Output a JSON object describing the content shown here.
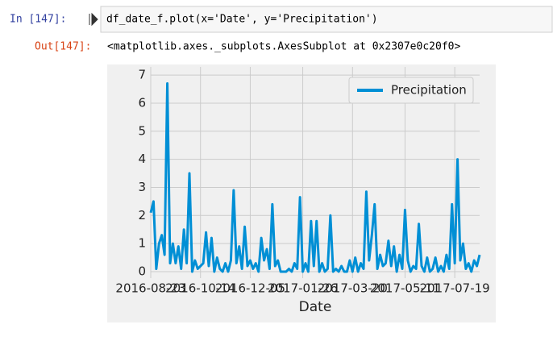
{
  "input": {
    "prompt": "In [147]:",
    "code": "df_date_f.plot(x='Date', y='Precipitation')"
  },
  "output": {
    "prompt": "Out[147]:",
    "text": "<matplotlib.axes._subplots.AxesSubplot at 0x2307e0c20f0>"
  },
  "chart_data": {
    "type": "line",
    "xlabel": "Date",
    "series": [
      {
        "name": "Precipitation",
        "color": "#008fd5",
        "values": [
          2.1,
          2.5,
          0.1,
          1.0,
          1.3,
          0.6,
          6.7,
          0.3,
          1.0,
          0.3,
          0.9,
          0.1,
          1.5,
          0.3,
          3.5,
          0.0,
          0.4,
          0.1,
          0.2,
          0.3,
          1.4,
          0.2,
          1.2,
          0.0,
          0.5,
          0.1,
          0.0,
          0.3,
          0.0,
          0.4,
          2.9,
          0.3,
          0.9,
          0.1,
          1.6,
          0.2,
          0.4,
          0.1,
          0.3,
          0.0,
          1.2,
          0.4,
          0.8,
          0.1,
          2.4,
          0.2,
          0.4,
          0.0,
          0.0,
          0.0,
          0.1,
          0.0,
          0.3,
          0.1,
          2.65,
          0.0,
          0.3,
          0.0,
          1.8,
          0.2,
          1.8,
          0.0,
          0.3,
          0.0,
          0.1,
          2.0,
          0.0,
          0.1,
          0.0,
          0.2,
          0.0,
          0.0,
          0.4,
          0.0,
          0.5,
          0.0,
          0.3,
          0.1,
          2.85,
          0.4,
          1.3,
          2.4,
          0.1,
          0.6,
          0.2,
          0.3,
          1.1,
          0.2,
          0.9,
          0.0,
          0.6,
          0.1,
          2.2,
          0.4,
          0.0,
          0.2,
          0.1,
          1.7,
          0.2,
          0.0,
          0.5,
          0.0,
          0.1,
          0.5,
          0.0,
          0.2,
          0.0,
          0.6,
          0.1,
          2.4,
          0.3,
          4.0,
          0.4,
          1.0,
          0.1,
          0.3,
          0.0,
          0.4,
          0.2,
          0.6
        ]
      }
    ],
    "xlim": [
      0,
      119
    ],
    "xticks": [
      {
        "value": 0,
        "label": "2016-08-23"
      },
      {
        "value": 18,
        "label": "2016-10-14"
      },
      {
        "value": 36,
        "label": "2016-12-05"
      },
      {
        "value": 55,
        "label": "2017-01-26"
      },
      {
        "value": 73,
        "label": "2017-03-20"
      },
      {
        "value": 92,
        "label": "2017-05-11"
      },
      {
        "value": 110,
        "label": "2017-07-19"
      }
    ],
    "ylim": [
      -0.23,
      7.29
    ],
    "yticks": [
      0,
      1,
      2,
      3,
      4,
      5,
      6,
      7
    ],
    "grid": true,
    "legend": "upper right"
  }
}
